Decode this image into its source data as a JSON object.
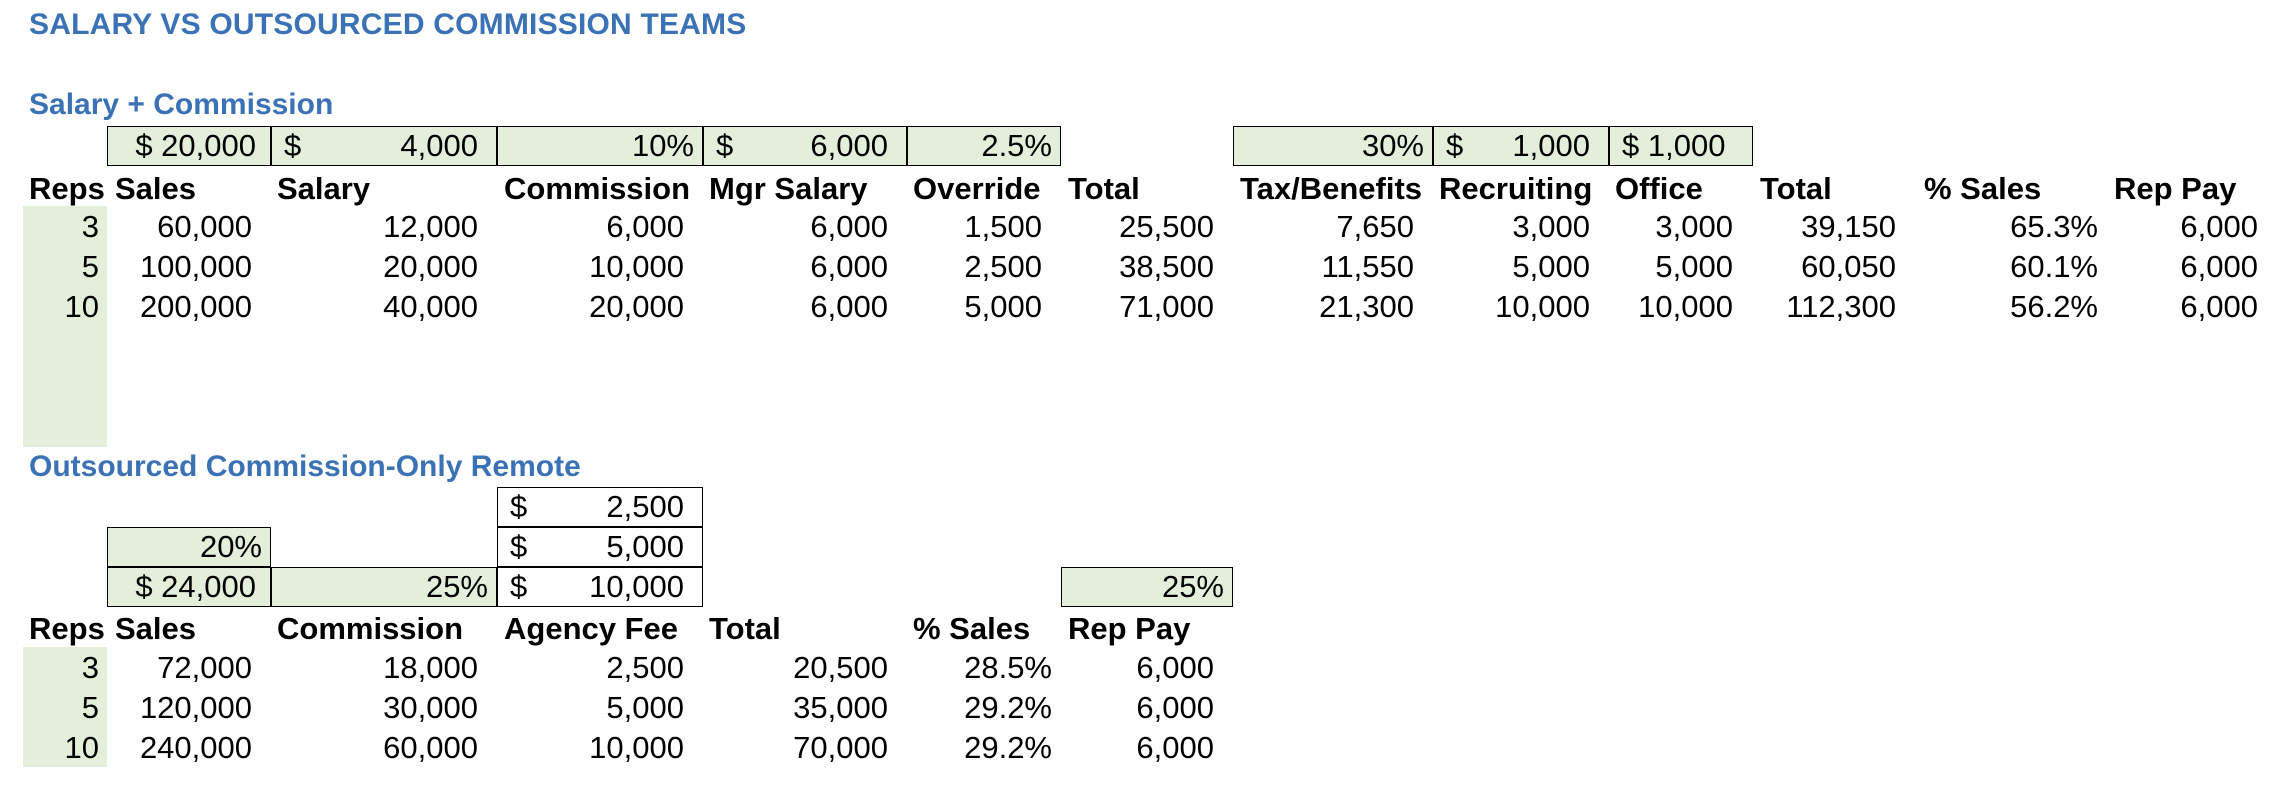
{
  "title": "SALARY VS OUTSOURCED COMMISSION TEAMS",
  "salary": {
    "heading": "Salary + Commission",
    "inputs": {
      "sales_per_rep": "$ 20,000",
      "salary_dollar": "$",
      "salary_value": "4,000",
      "commission_pct": "10%",
      "mgr_salary_dollar": "$",
      "mgr_salary_value": "6,000",
      "override_pct": "2.5%",
      "tax_pct": "30%",
      "recruiting_dollar": "$",
      "recruiting_value": "1,000",
      "office": "$ 1,000"
    },
    "headers": [
      "Reps",
      "Sales",
      "Salary",
      "Commission",
      "Mgr Salary",
      "Override",
      "Total",
      "Tax/Benefits",
      "Recruiting",
      "Office",
      "Total",
      "% Sales",
      "Rep Pay"
    ],
    "rows": [
      [
        "3",
        "60,000",
        "12,000",
        "6,000",
        "6,000",
        "1,500",
        "25,500",
        "7,650",
        "3,000",
        "3,000",
        "39,150",
        "65.3%",
        "6,000"
      ],
      [
        "5",
        "100,000",
        "20,000",
        "10,000",
        "6,000",
        "2,500",
        "38,500",
        "11,550",
        "5,000",
        "5,000",
        "60,050",
        "60.1%",
        "6,000"
      ],
      [
        "10",
        "200,000",
        "40,000",
        "20,000",
        "6,000",
        "5,000",
        "71,000",
        "21,300",
        "10,000",
        "10,000",
        "112,300",
        "56.2%",
        "6,000"
      ]
    ]
  },
  "outsourced": {
    "heading": "Outsourced Commission-Only Remote",
    "inputs": {
      "growth_pct": "20%",
      "sales_per_rep": "$ 24,000",
      "commission_pct": "25%",
      "fee_dollar": "$",
      "fee_tiers": [
        "2,500",
        "5,000",
        "10,000"
      ],
      "rep_pay_pct": "25%"
    },
    "headers": [
      "Reps",
      "Sales",
      "Commission",
      "Agency Fee",
      "Total",
      "% Sales",
      "Rep Pay"
    ],
    "rows": [
      [
        "3",
        "72,000",
        "18,000",
        "2,500",
        "20,500",
        "28.5%",
        "6,000"
      ],
      [
        "5",
        "120,000",
        "30,000",
        "5,000",
        "35,000",
        "29.2%",
        "6,000"
      ],
      [
        "10",
        "240,000",
        "60,000",
        "10,000",
        "70,000",
        "29.2%",
        "6,000"
      ]
    ]
  }
}
